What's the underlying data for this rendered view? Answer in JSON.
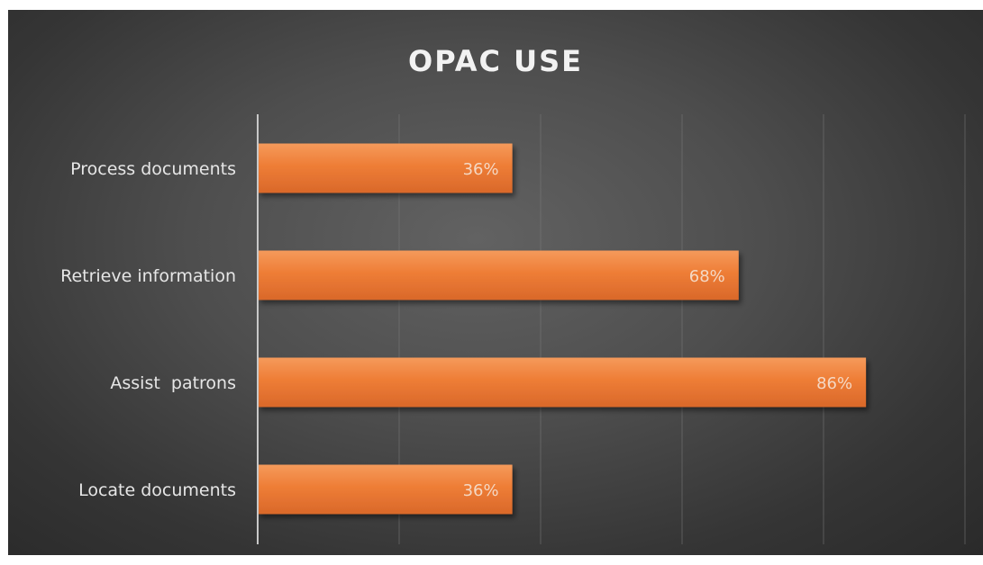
{
  "chart_data": {
    "type": "bar",
    "orientation": "horizontal",
    "title": "OPAC USE",
    "categories": [
      "Process documents",
      "Retrieve information",
      "Assist  patrons",
      "Locate documents"
    ],
    "values": [
      36,
      68,
      86,
      36
    ],
    "value_labels": [
      "36%",
      "68%",
      "86%",
      "36%"
    ],
    "xlim": [
      0,
      100
    ],
    "grid": "vertical",
    "legend": "none",
    "bar_color": "#ed7d31",
    "background_color": "#404040"
  }
}
